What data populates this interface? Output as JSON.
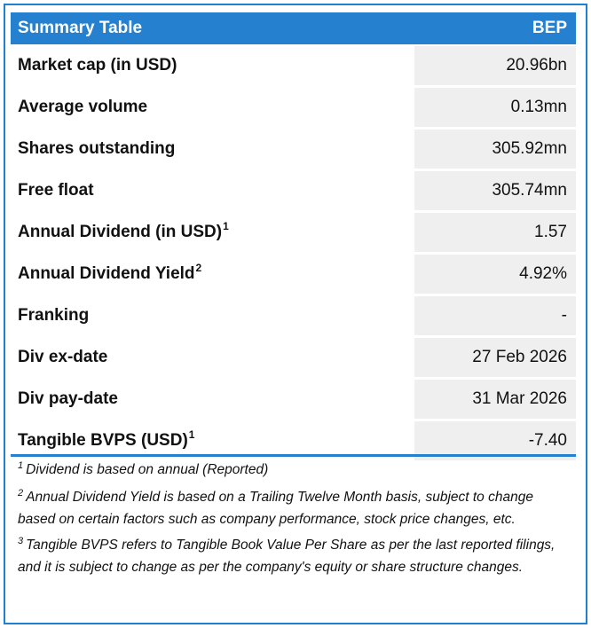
{
  "header": {
    "title": "Summary Table",
    "ticker": "BEP"
  },
  "rows": [
    {
      "label": "Market cap (in USD)",
      "sup": "",
      "value": "20.96bn"
    },
    {
      "label": "Average volume",
      "sup": "",
      "value": "0.13mn"
    },
    {
      "label": "Shares outstanding",
      "sup": "",
      "value": "305.92mn"
    },
    {
      "label": "Free float",
      "sup": "",
      "value": "305.74mn"
    },
    {
      "label": "Annual Dividend (in USD)",
      "sup": "1",
      "value": "1.57"
    },
    {
      "label": "Annual Dividend Yield",
      "sup": "2",
      "value": "4.92%"
    },
    {
      "label": "Franking",
      "sup": "",
      "value": "-"
    },
    {
      "label": "Div ex-date",
      "sup": "",
      "value": "27 Feb 2026"
    },
    {
      "label": "Div pay-date",
      "sup": "",
      "value": "31 Mar 2026"
    },
    {
      "label": "Tangible BVPS (USD)",
      "sup": "1",
      "value": "-7.40"
    }
  ],
  "notes": [
    {
      "num": "1",
      "text": "Dividend is based on annual (Reported)"
    },
    {
      "num": "2",
      "text": "Annual Dividend Yield is based on a Trailing Twelve Month basis, subject to change based on certain factors such as company performance, stock price changes, etc."
    },
    {
      "num": "3",
      "text": "Tangible BVPS refers to Tangible Book Value Per Share as per the last reported filings, and it is subject to change as per the company's equity or share structure changes."
    }
  ]
}
